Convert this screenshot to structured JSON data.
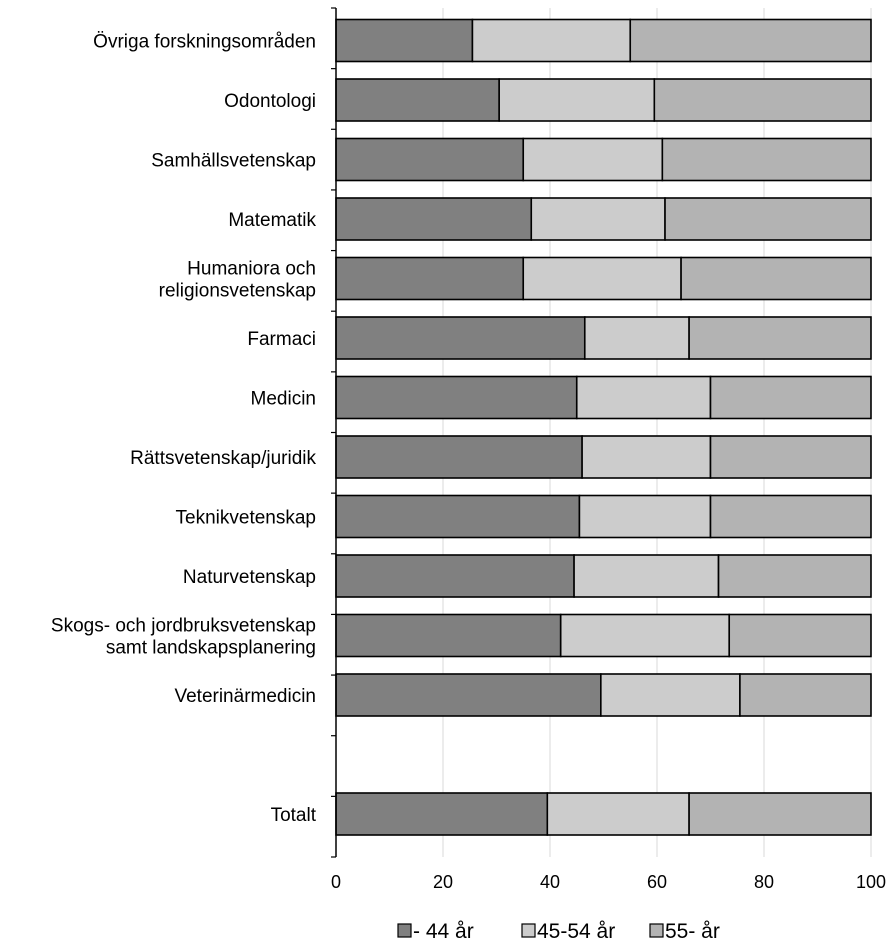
{
  "chart_data": {
    "type": "bar",
    "orientation": "horizontal",
    "stacked": true,
    "categories": [
      [
        "Övriga forskningsområden"
      ],
      [
        "Odontologi"
      ],
      [
        "Samhällsvetenskap"
      ],
      [
        "Matematik"
      ],
      [
        "Humaniora och",
        "religionsvetenskap"
      ],
      [
        "Farmaci"
      ],
      [
        "Medicin"
      ],
      [
        "Rättsvetenskap/juridik"
      ],
      [
        "Teknikvetenskap"
      ],
      [
        "Naturvetenskap"
      ],
      [
        "Skogs- och jordbruksvetenskap",
        "samt landskapsplanering"
      ],
      [
        "Veterinärmedicin"
      ],
      [
        ""
      ],
      [
        "Totalt"
      ]
    ],
    "series": [
      {
        "name": "- 44 år",
        "color": "#808080",
        "values": [
          25.5,
          30.5,
          35,
          36.5,
          35,
          46.5,
          45,
          46,
          45.5,
          44.5,
          42,
          49.5,
          null,
          39.5
        ]
      },
      {
        "name": "45-54 år",
        "color": "#cccccc",
        "values": [
          29.5,
          29,
          26,
          25,
          29.5,
          19.5,
          25,
          24,
          24.5,
          27,
          31.5,
          26,
          null,
          26.5
        ]
      },
      {
        "name": "55- år",
        "color": "#b3b3b3",
        "values": [
          45,
          40.5,
          39,
          38.5,
          35.5,
          34,
          30,
          30,
          30,
          28.5,
          26.5,
          24.5,
          null,
          34
        ]
      }
    ],
    "x_ticks": [
      "0",
      "20",
      "40",
      "60",
      "80",
      "100"
    ],
    "xlim": [
      0,
      100
    ],
    "grid": "vertical",
    "legend_position": "bottom"
  }
}
